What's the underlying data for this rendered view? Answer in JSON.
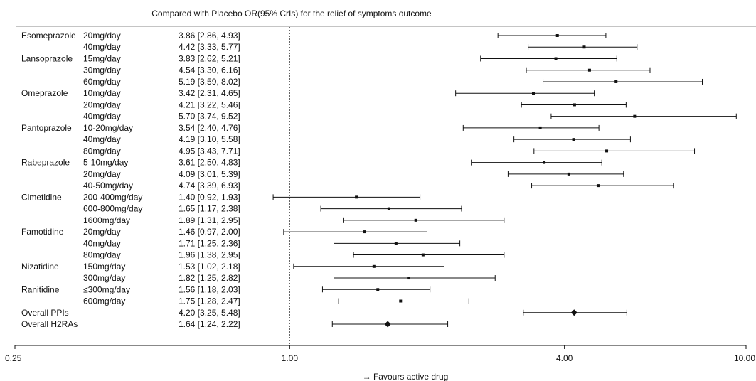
{
  "chart_data": {
    "type": "forest",
    "title": "Compared with Placebo OR(95% CrIs) for the relief of symptoms outcome",
    "xlabel": "→  Favours active drug",
    "x_scale": "log",
    "xlim": [
      0.25,
      10.0
    ],
    "reference_line": 1.0,
    "x_ticks": [
      {
        "value": 0.25,
        "label": "0.25"
      },
      {
        "value": 1.0,
        "label": "1.00"
      },
      {
        "value": 4.0,
        "label": "4.00"
      },
      {
        "value": 10.0,
        "label": "10.00"
      }
    ],
    "rows": [
      {
        "drug": "Esomeprazole",
        "dose": "20mg/day",
        "or": 3.86,
        "lo": 2.86,
        "hi": 4.93,
        "label": "3.86 [2.86, 4.93]",
        "overall": false
      },
      {
        "drug": "",
        "dose": "40mg/day",
        "or": 4.42,
        "lo": 3.33,
        "hi": 5.77,
        "label": "4.42 [3.33, 5.77]",
        "overall": false
      },
      {
        "drug": "Lansoprazole",
        "dose": "15mg/day",
        "or": 3.83,
        "lo": 2.62,
        "hi": 5.21,
        "label": "3.83 [2.62, 5.21]",
        "overall": false
      },
      {
        "drug": "",
        "dose": "30mg/day",
        "or": 4.54,
        "lo": 3.3,
        "hi": 6.16,
        "label": "4.54 [3.30, 6.16]",
        "overall": false
      },
      {
        "drug": "",
        "dose": "60mg/day",
        "or": 5.19,
        "lo": 3.59,
        "hi": 8.02,
        "label": "5.19 [3.59, 8.02]",
        "overall": false
      },
      {
        "drug": "Omeprazole",
        "dose": "10mg/day",
        "or": 3.42,
        "lo": 2.31,
        "hi": 4.65,
        "label": "3.42 [2.31, 4.65]",
        "overall": false
      },
      {
        "drug": "",
        "dose": "20mg/day",
        "or": 4.21,
        "lo": 3.22,
        "hi": 5.46,
        "label": "4.21 [3.22, 5.46]",
        "overall": false
      },
      {
        "drug": "",
        "dose": "40mg/day",
        "or": 5.7,
        "lo": 3.74,
        "hi": 9.52,
        "label": "5.70 [3.74, 9.52]",
        "overall": false
      },
      {
        "drug": "Pantoprazole",
        "dose": "10-20mg/day",
        "or": 3.54,
        "lo": 2.4,
        "hi": 4.76,
        "label": "3.54 [2.40, 4.76]",
        "overall": false
      },
      {
        "drug": "",
        "dose": "40mg/day",
        "or": 4.19,
        "lo": 3.1,
        "hi": 5.58,
        "label": "4.19 [3.10, 5.58]",
        "overall": false
      },
      {
        "drug": "",
        "dose": "80mg/day",
        "or": 4.95,
        "lo": 3.43,
        "hi": 7.71,
        "label": "4.95 [3.43, 7.71]",
        "overall": false
      },
      {
        "drug": "Rabeprazole",
        "dose": "5-10mg/day",
        "or": 3.61,
        "lo": 2.5,
        "hi": 4.83,
        "label": "3.61 [2.50, 4.83]",
        "overall": false
      },
      {
        "drug": "",
        "dose": "20mg/day",
        "or": 4.09,
        "lo": 3.01,
        "hi": 5.39,
        "label": "4.09 [3.01, 5.39]",
        "overall": false
      },
      {
        "drug": "",
        "dose": "40-50mg/day",
        "or": 4.74,
        "lo": 3.39,
        "hi": 6.93,
        "label": "4.74 [3.39, 6.93]",
        "overall": false
      },
      {
        "drug": "Cimetidine",
        "dose": "200-400mg/day",
        "or": 1.4,
        "lo": 0.92,
        "hi": 1.93,
        "label": "1.40 [0.92, 1.93]",
        "overall": false
      },
      {
        "drug": "",
        "dose": "600-800mg/day",
        "or": 1.65,
        "lo": 1.17,
        "hi": 2.38,
        "label": "1.65 [1.17, 2.38]",
        "overall": false
      },
      {
        "drug": "",
        "dose": "1600mg/day",
        "or": 1.89,
        "lo": 1.31,
        "hi": 2.95,
        "label": "1.89 [1.31, 2.95]",
        "overall": false
      },
      {
        "drug": "Famotidine",
        "dose": "20mg/day",
        "or": 1.46,
        "lo": 0.97,
        "hi": 2.0,
        "label": "1.46 [0.97, 2.00]",
        "overall": false
      },
      {
        "drug": "",
        "dose": "40mg/day",
        "or": 1.71,
        "lo": 1.25,
        "hi": 2.36,
        "label": "1.71 [1.25, 2.36]",
        "overall": false
      },
      {
        "drug": "",
        "dose": "80mg/day",
        "or": 1.96,
        "lo": 1.38,
        "hi": 2.95,
        "label": "1.96 [1.38, 2.95]",
        "overall": false
      },
      {
        "drug": "Nizatidine",
        "dose": "150mg/day",
        "or": 1.53,
        "lo": 1.02,
        "hi": 2.18,
        "label": "1.53 [1.02, 2.18]",
        "overall": false
      },
      {
        "drug": "",
        "dose": "300mg/day",
        "or": 1.82,
        "lo": 1.25,
        "hi": 2.82,
        "label": "1.82 [1.25, 2.82]",
        "overall": false
      },
      {
        "drug": "Ranitidine",
        "dose": "≤300mg/day",
        "or": 1.56,
        "lo": 1.18,
        "hi": 2.03,
        "label": "1.56 [1.18, 2.03]",
        "overall": false
      },
      {
        "drug": "",
        "dose": "600mg/day",
        "or": 1.75,
        "lo": 1.28,
        "hi": 2.47,
        "label": "1.75 [1.28, 2.47]",
        "overall": false
      },
      {
        "drug": "Overall PPIs",
        "dose": "",
        "or": 4.2,
        "lo": 3.25,
        "hi": 5.48,
        "label": "4.20 [3.25, 5.48]",
        "overall": true
      },
      {
        "drug": "Overall H2RAs",
        "dose": "",
        "or": 1.64,
        "lo": 1.24,
        "hi": 2.22,
        "label": "1.64 [1.24, 2.22]",
        "overall": true
      }
    ],
    "colors": {
      "marks": "#111111",
      "reference_line": "#444444",
      "axis": "#111111"
    },
    "grid": false
  }
}
